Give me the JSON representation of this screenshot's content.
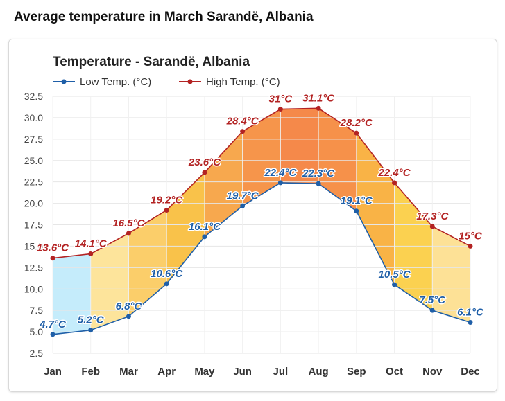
{
  "page": {
    "heading": "Average temperature in March Sarandë, Albania"
  },
  "chart_data": {
    "type": "line",
    "title": "Temperature - Sarandë, Albania",
    "categories": [
      "Jan",
      "Feb",
      "Mar",
      "Apr",
      "May",
      "Jun",
      "Jul",
      "Aug",
      "Sep",
      "Oct",
      "Nov",
      "Dec"
    ],
    "series": [
      {
        "name": "Low Temp. (°C)",
        "color": "#1f5fa8",
        "values": [
          4.7,
          5.2,
          6.8,
          10.6,
          16.1,
          19.7,
          22.4,
          22.3,
          19.1,
          10.5,
          7.5,
          6.1
        ],
        "labels": [
          "4.7°C",
          "5.2°C",
          "6.8°C",
          "10.6°C",
          "16.1°C",
          "19.7°C",
          "22.4°C",
          "22.3°C",
          "19.1°C",
          "10.5°C",
          "7.5°C",
          "6.1°C"
        ]
      },
      {
        "name": "High Temp. (°C)",
        "color": "#b32323",
        "values": [
          13.6,
          14.1,
          16.5,
          19.2,
          23.6,
          28.4,
          31,
          31.1,
          28.2,
          22.4,
          17.3,
          15
        ],
        "labels": [
          "13.6°C",
          "14.1°C",
          "16.5°C",
          "19.2°C",
          "23.6°C",
          "28.4°C",
          "31°C",
          "31.1°C",
          "28.2°C",
          "22.4°C",
          "17.3°C",
          "15°C"
        ]
      }
    ],
    "yticks": [
      "2.5",
      "5.0",
      "7.5",
      "10.0",
      "12.5",
      "15.0",
      "17.5",
      "20.0",
      "22.5",
      "25.0",
      "27.5",
      "30.0",
      "32.5"
    ],
    "ylim": [
      2.5,
      32.5
    ],
    "grid": true,
    "legend_position": "top-left",
    "band_colors": [
      "#c5ecfb",
      "#fde49b",
      "#fbce6a",
      "#f9c24a",
      "#f7a84e",
      "#f6954b",
      "#f5894a",
      "#f6914a",
      "#f9b346",
      "#fbd150",
      "#fde196",
      "#fde5a2"
    ]
  }
}
